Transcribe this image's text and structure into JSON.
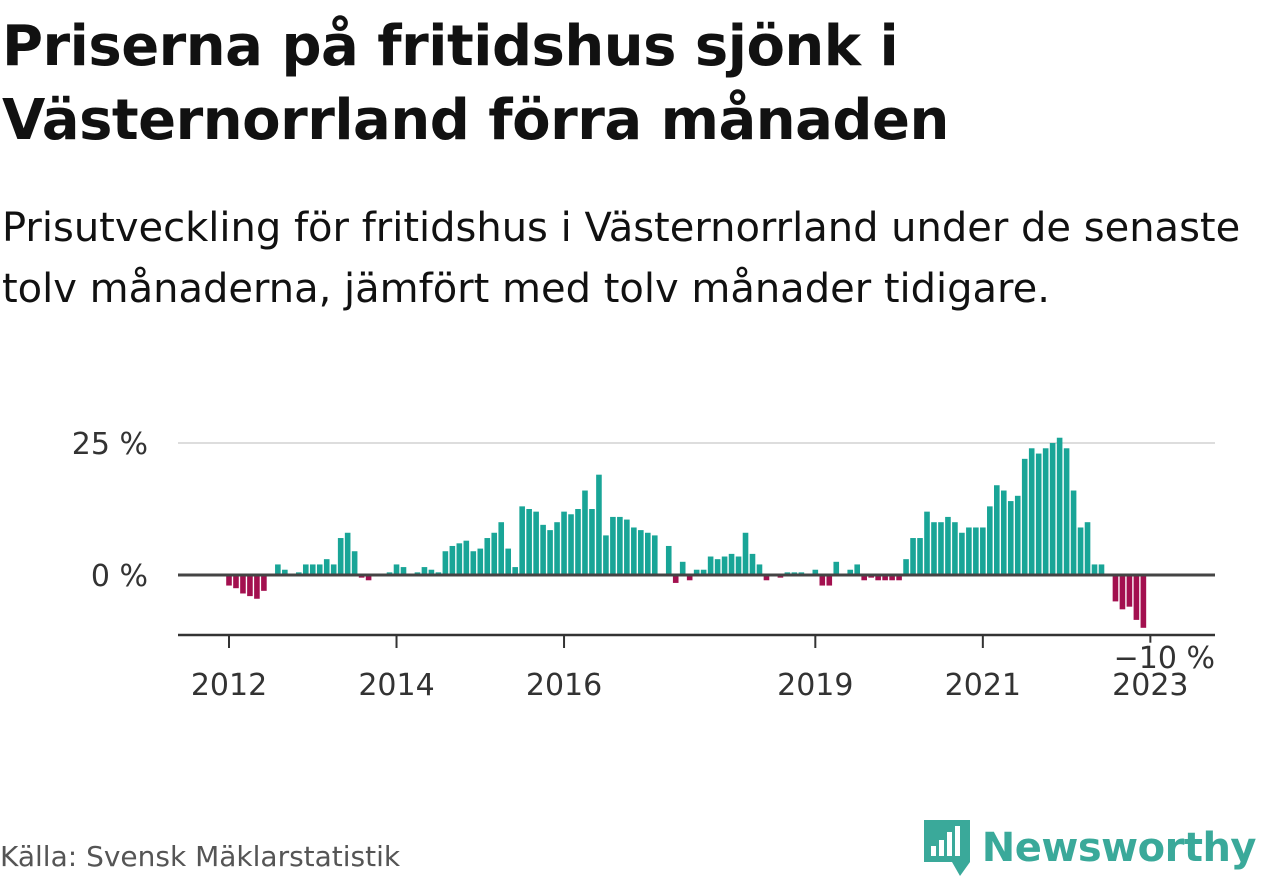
{
  "header": {
    "title": "Priserna på fritidshus sjönk i Västernorrland förra månaden",
    "subtitle": "Prisutveckling för fritidshus i Västernorrland under de senaste tolv månaderna, jämfört med tolv månader tidigare."
  },
  "footer": {
    "source": "Källa: Svensk Mäklarstatistik",
    "logo_text": "Newsworthy"
  },
  "colors": {
    "positive": "#19a597",
    "negative": "#a3104f",
    "grid": "#dddddd",
    "zero_line": "#444444",
    "axis": "#333333"
  },
  "chart_data": {
    "type": "bar",
    "ylim": [
      -11,
      25
    ],
    "y_ticks": [
      {
        "value": 25,
        "label": "25 %"
      },
      {
        "value": 0,
        "label": "0 %"
      }
    ],
    "x_ticks": [
      {
        "date": "2012-01",
        "label": "2012"
      },
      {
        "date": "2014-01",
        "label": "2014"
      },
      {
        "date": "2016-01",
        "label": "2016"
      },
      {
        "date": "2019-01",
        "label": "2019"
      },
      {
        "date": "2021-01",
        "label": "2021"
      },
      {
        "date": "2023-01",
        "label": "2023"
      }
    ],
    "annotation": {
      "date": "2023-09",
      "label": "−10 %"
    },
    "start": "2012-01",
    "values": [
      -2,
      -2.5,
      -3.5,
      -4,
      -4.5,
      -3,
      null,
      2,
      1,
      0,
      0.5,
      2,
      2,
      2,
      3,
      2,
      7,
      8,
      4.5,
      -0.5,
      -1,
      null,
      null,
      0.5,
      2,
      1.5,
      null,
      0.5,
      1.5,
      1,
      0.5,
      4.5,
      5.5,
      6,
      6.5,
      4.5,
      5,
      7,
      8,
      10,
      5,
      1.5,
      13,
      12.5,
      12,
      9.5,
      8.5,
      10,
      12,
      11.5,
      12.5,
      16,
      12.5,
      19,
      7.5,
      11,
      11,
      10.5,
      9,
      8.5,
      8,
      7.5,
      null,
      5.5,
      -1.5,
      2.5,
      -1,
      1,
      1,
      3.5,
      3,
      3.5,
      4,
      3.5,
      8,
      4,
      2,
      -1,
      null,
      -0.5,
      0.5,
      0.5,
      0.5,
      null,
      1,
      -2,
      -2,
      2.5,
      null,
      1,
      2,
      -1,
      -0.5,
      -1,
      -1,
      -1,
      -1,
      3,
      7,
      7,
      12,
      10,
      10,
      11,
      10,
      8,
      9,
      9,
      9,
      13,
      17,
      16,
      14,
      15,
      22,
      24,
      23,
      24,
      25,
      26,
      24,
      16,
      9,
      10,
      2,
      2,
      null,
      -5,
      -6.5,
      -6,
      -8.5,
      -10
    ]
  }
}
